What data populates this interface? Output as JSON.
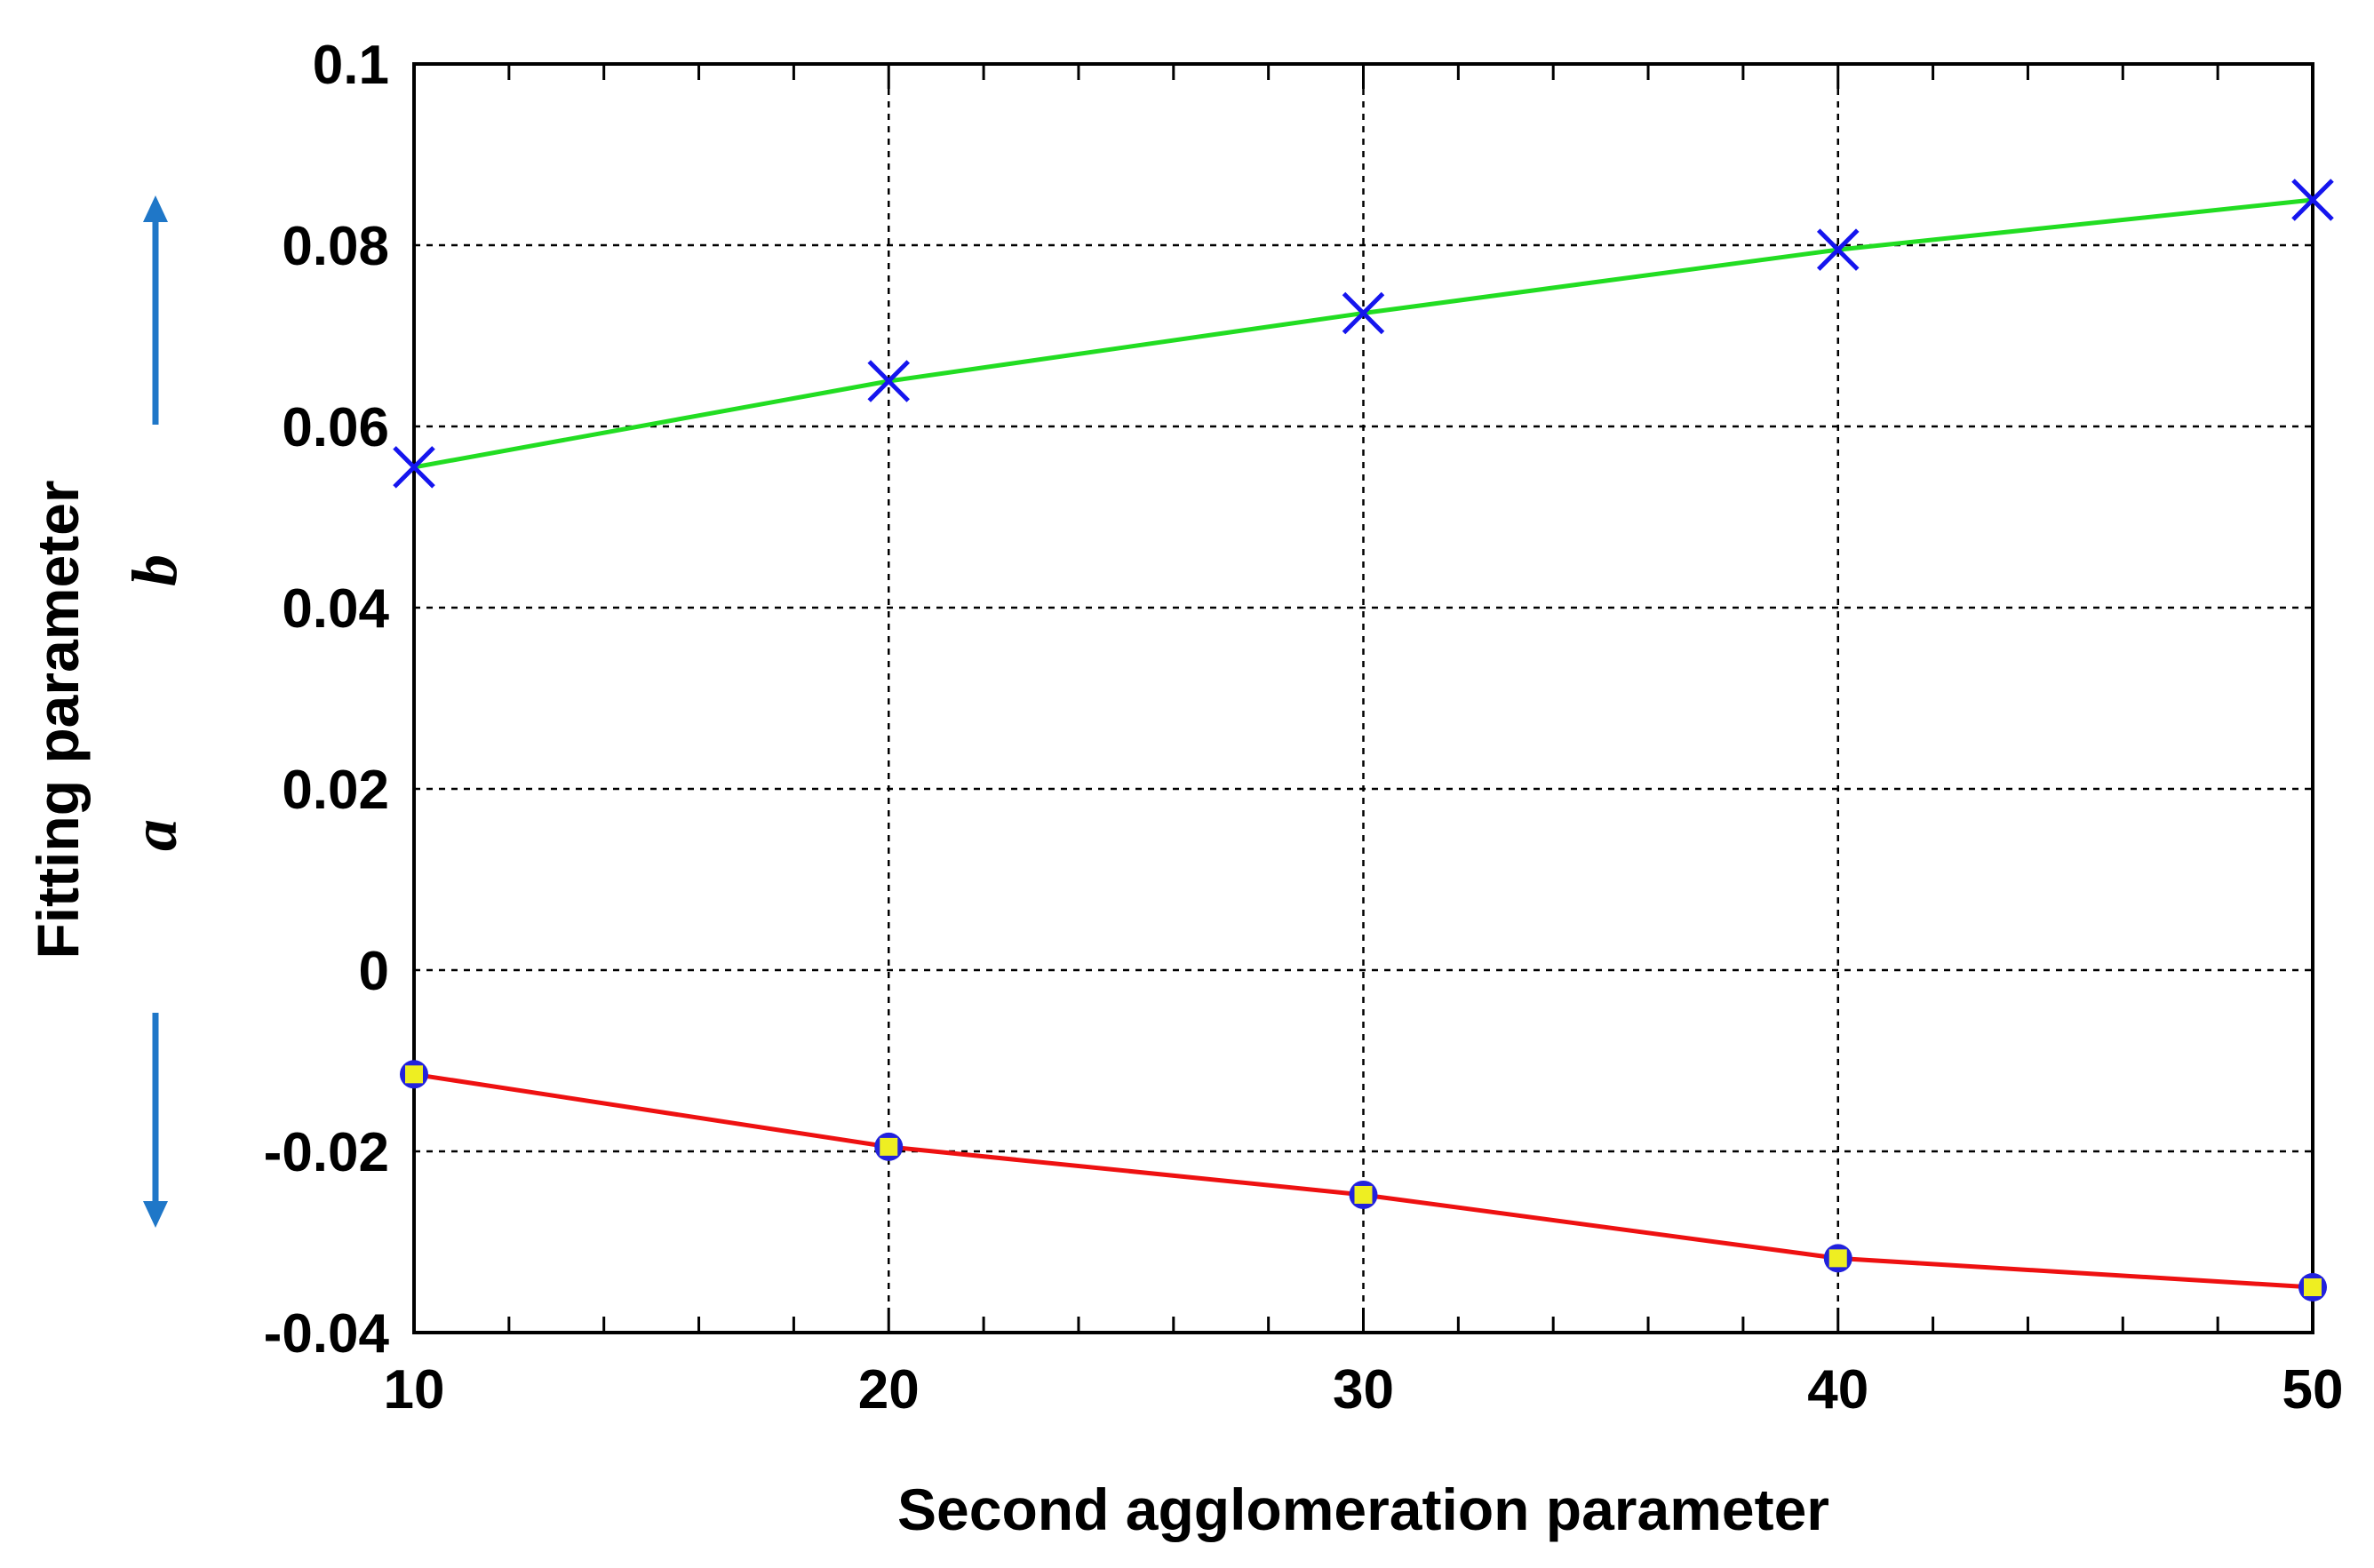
{
  "chart_data": {
    "type": "line",
    "title": "",
    "xlabel": "Second agglomeration parameter",
    "ylabel": "Fitting parameter",
    "ylabel_series_letters": [
      "a",
      "b"
    ],
    "xlim": [
      10,
      50
    ],
    "ylim": [
      -0.04,
      0.1
    ],
    "x_ticks": [
      10,
      20,
      30,
      40,
      50
    ],
    "x_tick_labels": [
      "10",
      "20",
      "30",
      "40",
      "50"
    ],
    "y_ticks": [
      -0.04,
      -0.02,
      0,
      0.02,
      0.04,
      0.06,
      0.08,
      0.1
    ],
    "y_tick_labels": [
      "-0.04",
      "-0.02",
      "0",
      "0.02",
      "0.04",
      "0.06",
      "0.08",
      "0.1"
    ],
    "grid": true,
    "legend": "none",
    "x": [
      10,
      20,
      30,
      40,
      50
    ],
    "series": [
      {
        "name": "b",
        "values": [
          0.0555,
          0.065,
          0.0725,
          0.0795,
          0.085
        ],
        "line_color": "#22dd22",
        "marker": "x",
        "marker_color": "#1515ee"
      },
      {
        "name": "a",
        "values": [
          -0.0115,
          -0.0195,
          -0.0248,
          -0.0318,
          -0.035
        ],
        "line_color": "#ee1111",
        "marker": "square",
        "marker_color": "#eeee22",
        "marker_edge_color": "#2222dd"
      }
    ],
    "arrows": [
      {
        "series": "b",
        "direction": "up",
        "color": "#1f77c8"
      },
      {
        "series": "a",
        "direction": "down",
        "color": "#1f77c8"
      }
    ]
  }
}
